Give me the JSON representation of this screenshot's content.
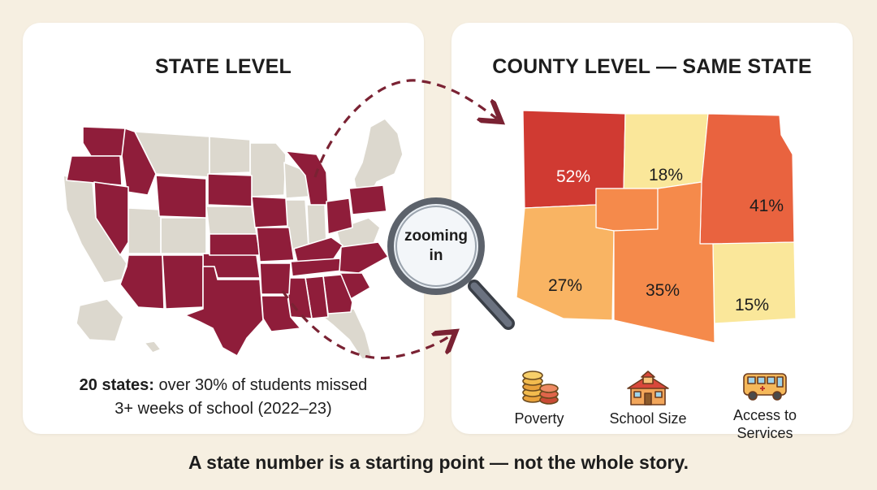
{
  "state_panel": {
    "title": "STATE LEVEL",
    "caption_bold": "20 states:",
    "caption_rest": " over 30% of students missed",
    "caption_line2": "3+ weeks of school (2022–23)"
  },
  "county_panel": {
    "title": "COUNTY LEVEL — SAME STATE",
    "counties": [
      "52%",
      "18%",
      "41%",
      "27%",
      "35%",
      "15%"
    ]
  },
  "magnifier": {
    "line1": "zooming",
    "line2": "in"
  },
  "factors": [
    {
      "label": "Poverty",
      "icon": "coins-icon"
    },
    {
      "label": "School Size",
      "icon": "school-icon"
    },
    {
      "label_line1": "Access to",
      "label_line2": "Services",
      "icon": "bus-icon"
    }
  ],
  "footer": "A state number is a starting point — not the whole story.",
  "colors": {
    "background": "#f6efe1",
    "highlight_state": "#8f1d3a",
    "other_state": "#dcd8ce",
    "county_high": "#d03a32",
    "county_mid_high": "#e9633f",
    "county_mid": "#f58a4b",
    "county_mid_low": "#f9b463",
    "county_low": "#fae79a",
    "arrow": "#7a2233"
  }
}
